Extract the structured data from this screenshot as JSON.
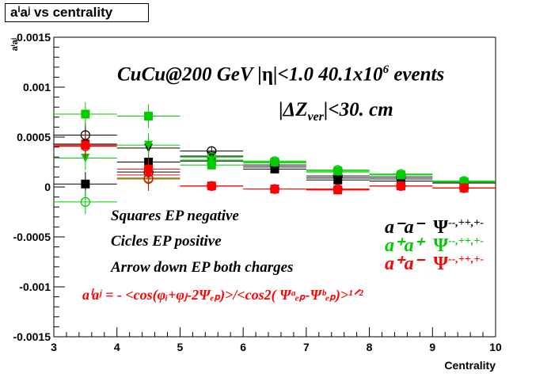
{
  "chart_data": {
    "type": "scatter",
    "title": "aⁱaʲ vs centrality",
    "xlabel": "Centrality",
    "ylabel": "aⁱaʲ",
    "xlim": [
      3,
      10
    ],
    "ylim": [
      -0.0015,
      0.0015
    ],
    "x_ticks": [
      "3",
      "4",
      "5",
      "6",
      "7",
      "8",
      "9",
      "10"
    ],
    "y_ticks": [
      "-0.0015",
      "-0.001",
      "-0.0005",
      "0",
      "0.0005",
      "0.001",
      "0.0015"
    ],
    "y_tick_values": [
      -0.0015,
      -0.001,
      -0.0005,
      0,
      0.0005,
      0.001,
      0.0015
    ],
    "x_bins": [
      [
        3,
        4
      ],
      [
        4,
        5
      ],
      [
        5,
        6
      ],
      [
        6,
        7
      ],
      [
        7,
        8
      ],
      [
        8,
        9
      ],
      [
        9,
        10
      ]
    ],
    "x": [
      3.5,
      4.5,
      5.5,
      6.5,
      7.5,
      8.5,
      9.5
    ],
    "colors": {
      "black": "#000000",
      "green": "#00cc00",
      "red": "#ff0000"
    },
    "series": [
      {
        "color": "black",
        "marker": "square",
        "values": [
          3e-05,
          0.00025,
          0.00026,
          0.00018,
          7e-05,
          6e-05,
          4e-05
        ]
      },
      {
        "color": "black",
        "marker": "circle",
        "values": [
          0.00052,
          0.00015,
          0.00036,
          0.00022,
          0.00011,
          0.0001,
          4e-05
        ]
      },
      {
        "color": "black",
        "marker": "triangle",
        "values": [
          0.00043,
          0.00039,
          0.00031,
          0.0002,
          9e-05,
          8e-05,
          4e-05
        ]
      },
      {
        "color": "green",
        "marker": "square",
        "values": [
          0.00073,
          0.00071,
          0.00022,
          0.00025,
          0.00016,
          0.00012,
          5e-05
        ]
      },
      {
        "color": "green",
        "marker": "circle",
        "values": [
          -0.00015,
          9e-05,
          0.0003,
          0.00026,
          0.00017,
          0.00013,
          6e-05
        ]
      },
      {
        "color": "green",
        "marker": "triangle",
        "values": [
          0.00029,
          0.00042,
          0.00027,
          0.00024,
          0.00015,
          0.00012,
          5e-05
        ]
      },
      {
        "color": "red",
        "marker": "square",
        "values": [
          0.00042,
          0.00018,
          1e-05,
          -2e-05,
          -3e-05,
          1e-05,
          -1e-05
        ]
      },
      {
        "color": "red",
        "marker": "circle",
        "values": [
          0.00041,
          8e-05,
          1e-05,
          -2e-05,
          -2e-05,
          1e-05,
          -1e-05
        ]
      },
      {
        "color": "red",
        "marker": "triangle",
        "values": [
          0.00041,
          0.00012,
          1e-05,
          -2e-05,
          -3e-05,
          1e-05,
          -1e-05
        ]
      }
    ],
    "annotations": {
      "line1_pre": "CuCu@200 GeV |",
      "line1_eta": "η",
      "line1_mid": "|<1.0 40.1x10",
      "line1_sup": "6",
      "line1_post": " events",
      "line2_pre": "|",
      "line2_delta": "ΔZ",
      "line2_sub": "ver",
      "line2_post": "|<30. cm",
      "squares": "Squares EP negative",
      "circles": "Cicles EP positive",
      "arrows": "Arrow down EP both charges"
    },
    "legend": [
      {
        "color": "black",
        "pair": "a⁻a⁻",
        "psi": "Ψ",
        "sup": "--,++,+-"
      },
      {
        "color": "green",
        "pair": "a⁺a⁺",
        "psi": "Ψ",
        "sup": "--,++,+-"
      },
      {
        "color": "red",
        "pair": "a⁺a⁻",
        "psi": "Ψ",
        "sup": "--,++,+-"
      }
    ],
    "formula": "aⁱaʲ = - <cos(φᵢ+φⱼ-2Ψₑₚ)>/<cos2( Ψᵃₑₚ-Ψᵇₑₚ)>¹ᐟ²"
  }
}
